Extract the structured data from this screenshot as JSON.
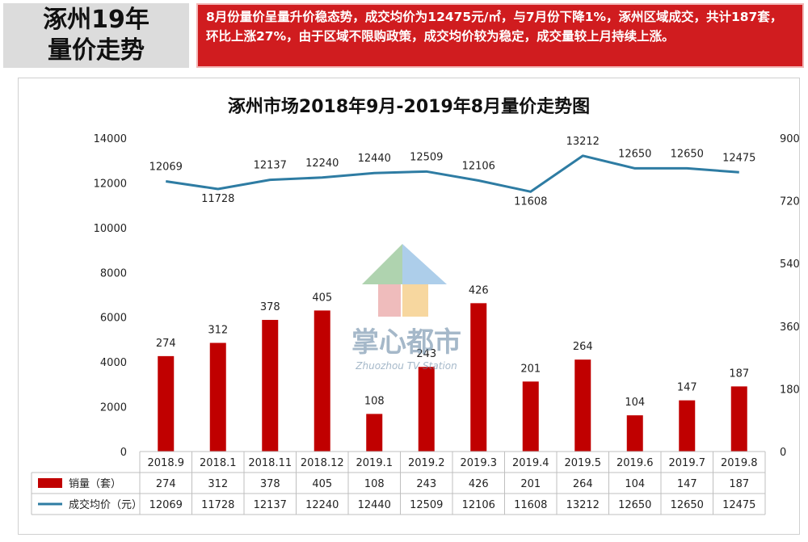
{
  "header": {
    "title_line1": "涿州19年",
    "title_line2": "量价走势",
    "summary": "8月份量价呈量升价稳态势，成交均价为12475元/㎡，与7月份下降1%，涿州区域成交，共计187套，环比上涨27%，由于区域不限购政策，成交均价较为稳定，成交量较上月持续上涨。"
  },
  "watermark": {
    "text": "掌心都市",
    "subtext": "Zhuozhou TV Station",
    "icon": "house-logo-icon"
  },
  "colors": {
    "bar": "#c00000",
    "line": "#2e7ca3",
    "summary_bg": "#d01c1f",
    "title_bg": "#dcdcdc"
  },
  "chart_data": {
    "type": "bar",
    "title": "涿州市场2018年9月-2019年8月量价走势图",
    "categories": [
      "2018.9",
      "2018.1",
      "2018.11",
      "2018.12",
      "2019.1",
      "2019.2",
      "2019.3",
      "2019.4",
      "2019.5",
      "2019.6",
      "2019.7",
      "2019.8"
    ],
    "series": [
      {
        "name": "销量（套）",
        "type": "bar",
        "axis": "right",
        "values": [
          274,
          312,
          378,
          405,
          108,
          243,
          426,
          201,
          264,
          104,
          147,
          187
        ]
      },
      {
        "name": "成交均价（元）",
        "type": "line",
        "axis": "left",
        "values": [
          12069,
          11728,
          12137,
          12240,
          12440,
          12509,
          12106,
          11608,
          13212,
          12650,
          12650,
          12475
        ]
      }
    ],
    "y_left": {
      "min": 0,
      "max": 14000,
      "ticks": [
        0,
        2000,
        4000,
        6000,
        8000,
        10000,
        12000,
        14000
      ]
    },
    "y_right": {
      "min": 0,
      "max": 900,
      "ticks": [
        0,
        180,
        360,
        540,
        720,
        900
      ]
    },
    "data_table": true
  }
}
